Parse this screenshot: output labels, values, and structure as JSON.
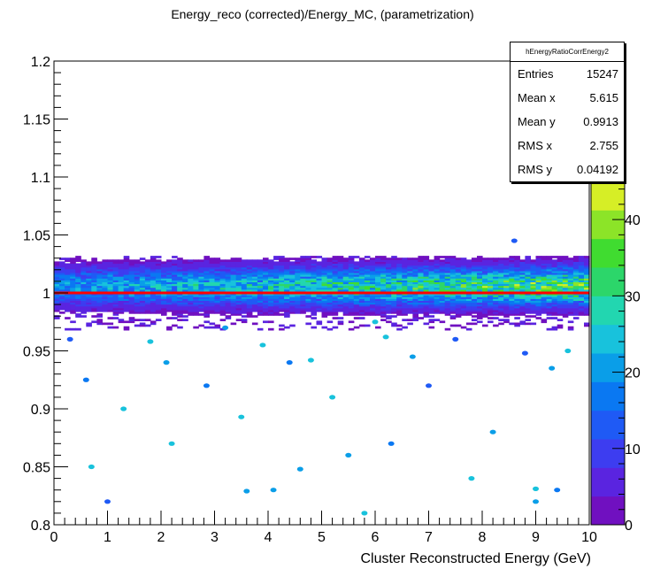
{
  "chart_data": {
    "type": "heatmap",
    "title": "Energy_reco (corrected)/Energy_MC, (parametrization)",
    "xlabel": "Cluster Reconstructed Energy (GeV)",
    "ylabel": "",
    "xlim": [
      0,
      10
    ],
    "ylim": [
      0.8,
      1.2
    ],
    "x_ticks": [
      "0",
      "1",
      "2",
      "3",
      "4",
      "5",
      "6",
      "7",
      "8",
      "9",
      "10"
    ],
    "y_ticks": [
      "0.8",
      "0.85",
      "0.9",
      "0.95",
      "1",
      "1.05",
      "1.1",
      "1.15",
      "1.2"
    ],
    "colorbar": {
      "range": [
        0,
        45
      ],
      "ticks": [
        "0",
        "10",
        "20",
        "30",
        "40"
      ]
    },
    "reference_line": {
      "y": 1.0,
      "color": "#ff0000"
    },
    "band": {
      "center": 1.0,
      "half_width": 0.02,
      "peak_counts": 40
    },
    "outliers": [
      [
        3.5,
        0.893
      ],
      [
        4.6,
        0.848
      ],
      [
        6.3,
        0.87
      ],
      [
        5.8,
        0.81
      ],
      [
        9.0,
        0.82
      ],
      [
        9.0,
        0.831
      ],
      [
        3.6,
        0.829
      ],
      [
        2.85,
        0.92
      ],
      [
        4.4,
        0.94
      ],
      [
        4.8,
        0.942
      ],
      [
        6.2,
        0.962
      ],
      [
        6.7,
        0.945
      ],
      [
        7.5,
        0.96
      ],
      [
        8.8,
        0.948
      ],
      [
        9.3,
        0.935
      ],
      [
        0.7,
        0.85
      ],
      [
        1.3,
        0.9
      ],
      [
        0.6,
        0.925
      ],
      [
        2.1,
        0.94
      ],
      [
        7.0,
        0.92
      ],
      [
        8.2,
        0.88
      ],
      [
        5.2,
        0.91
      ],
      [
        3.9,
        0.955
      ],
      [
        1.8,
        0.958
      ],
      [
        6.0,
        0.975
      ],
      [
        8.6,
        1.045
      ],
      [
        9.4,
        0.83
      ],
      [
        4.1,
        0.83
      ],
      [
        2.2,
        0.87
      ],
      [
        7.8,
        0.84
      ],
      [
        5.5,
        0.86
      ],
      [
        1.0,
        0.82
      ],
      [
        3.2,
        0.97
      ],
      [
        0.3,
        0.96
      ],
      [
        9.6,
        0.95
      ]
    ],
    "stats": {
      "name": "hEnergyRatioCorrEnergy2",
      "rows": [
        {
          "label": "Entries",
          "value": "15247"
        },
        {
          "label": "Mean x",
          "value": "5.615"
        },
        {
          "label": "Mean y",
          "value": "0.9913"
        },
        {
          "label": "RMS x",
          "value": "2.755"
        },
        {
          "label": "RMS y",
          "value": "0.04192"
        }
      ]
    },
    "palette": [
      "#7010c0",
      "#5a24e0",
      "#3d3df0",
      "#1f5af5",
      "#0a78f2",
      "#0a9ee8",
      "#18c2dc",
      "#22d6b0",
      "#2cd66a",
      "#40dc30",
      "#8ce428",
      "#d6ee26"
    ]
  }
}
